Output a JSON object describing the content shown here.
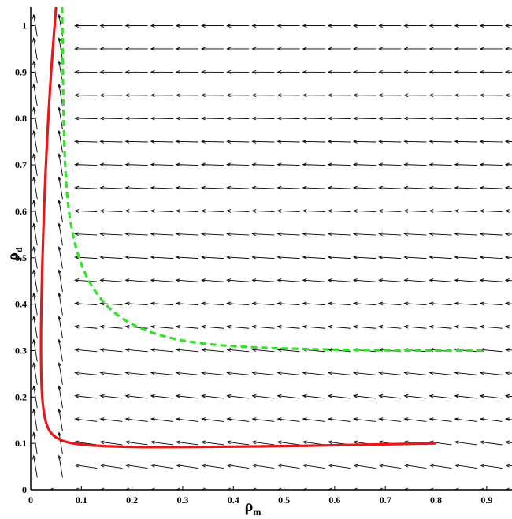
{
  "chart_data": {
    "type": "line",
    "title": "",
    "xlabel": {
      "main": "ρ",
      "sub": "m"
    },
    "ylabel": {
      "main": "ρ",
      "sub": "d"
    },
    "xlim": [
      0,
      0.95
    ],
    "ylim": [
      0,
      1.04
    ],
    "xticks": [
      0,
      0.1,
      0.2,
      0.3,
      0.4,
      0.5,
      0.6,
      0.7,
      0.8,
      0.9
    ],
    "xtick_labels": [
      "0",
      "0.1",
      "0.2",
      "0.3",
      "0.4",
      "0.5",
      "0.6",
      "0.7",
      "0.8",
      "0.9"
    ],
    "yticks": [
      0,
      0.1,
      0.2,
      0.3,
      0.4,
      0.5,
      0.6,
      0.7,
      0.8,
      0.9,
      1
    ],
    "ytick_labels": [
      "0",
      "0.1",
      "0.2",
      "0.3",
      "0.4",
      "0.5",
      "0.6",
      "0.7",
      "0.8",
      "0.9",
      "1"
    ],
    "grid": false,
    "series": [
      {
        "style": "solid",
        "color": "#e8171a",
        "x": [
          0.05,
          0.04,
          0.032,
          0.026,
          0.022,
          0.02,
          0.021,
          0.026,
          0.036,
          0.055,
          0.08,
          0.12,
          0.2,
          0.3,
          0.4,
          0.5,
          0.6,
          0.7,
          0.8
        ],
        "y": [
          1.04,
          0.9,
          0.75,
          0.6,
          0.45,
          0.33,
          0.22,
          0.16,
          0.125,
          0.108,
          0.1,
          0.095,
          0.092,
          0.092,
          0.093,
          0.094,
          0.096,
          0.098,
          0.1
        ]
      },
      {
        "style": "dashed",
        "color": "#33e02a",
        "x": [
          0.062,
          0.063,
          0.064,
          0.066,
          0.07,
          0.08,
          0.1,
          0.13,
          0.17,
          0.22,
          0.28,
          0.35,
          0.45,
          0.55,
          0.65,
          0.75,
          0.85,
          0.9
        ],
        "y": [
          1.04,
          0.95,
          0.85,
          0.75,
          0.65,
          0.56,
          0.48,
          0.42,
          0.375,
          0.345,
          0.325,
          0.313,
          0.306,
          0.303,
          0.301,
          0.3,
          0.3,
          0.3
        ]
      }
    ],
    "vector_field": {
      "x_start": 0,
      "x_step": 0.05,
      "x_count": 20,
      "y_start": 0,
      "y_step": 0.05,
      "y_count": 21,
      "color": "#000000"
    }
  }
}
